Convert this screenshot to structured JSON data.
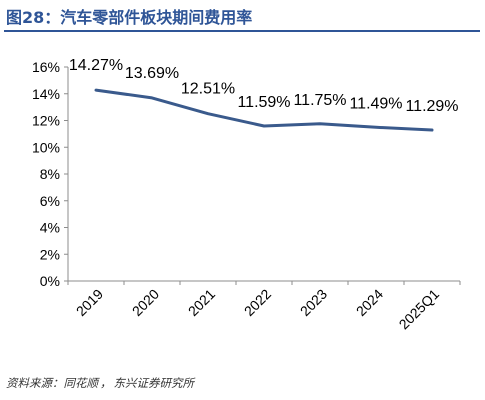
{
  "title": "图28：汽车零部件板块期间费用率",
  "source": {
    "label": "资料来源：",
    "items": [
      "同花顺",
      "东兴证券研究所"
    ],
    "separator": "，"
  },
  "colors": {
    "line": "#3a5a8c",
    "title": "#2f5597"
  },
  "chart_data": {
    "type": "line",
    "categories": [
      "2019",
      "2020",
      "2021",
      "2022",
      "2023",
      "2024",
      "2025Q1"
    ],
    "series": [
      {
        "values": [
          14.27,
          13.69,
          12.51,
          11.59,
          11.75,
          11.49,
          11.29
        ]
      }
    ],
    "data_labels": [
      "14.27%",
      "13.69%",
      "12.51%",
      "11.59%",
      "11.75%",
      "11.49%",
      "11.29%"
    ],
    "y_ticks": [
      "0%",
      "2%",
      "4%",
      "6%",
      "8%",
      "10%",
      "12%",
      "14%",
      "16%"
    ],
    "ylim": [
      0,
      16
    ],
    "grid": false,
    "legend": "none"
  }
}
